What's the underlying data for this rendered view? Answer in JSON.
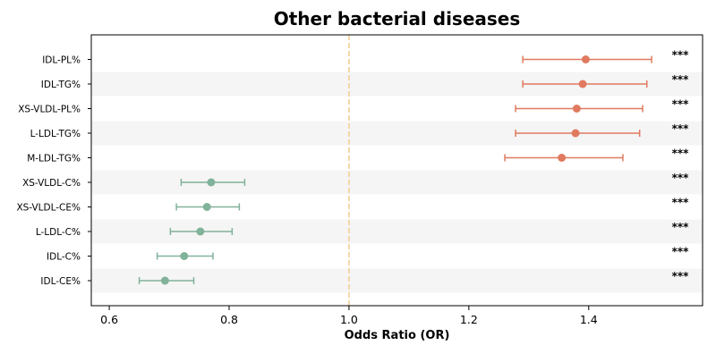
{
  "chart_data": {
    "type": "forest",
    "title": "Other bacterial diseases",
    "xlabel": "Odds Ratio (OR)",
    "ylabel": "",
    "xlim": [
      0.57,
      1.59
    ],
    "xticks": [
      0.6,
      0.8,
      1.0,
      1.2,
      1.4
    ],
    "xtick_labels": [
      "0.6",
      "0.8",
      "1.0",
      "1.2",
      "1.4"
    ],
    "reference_line": 1.0,
    "significance_marker": "***",
    "colors": {
      "positive": "#e07a5f",
      "negative": "#81b29a",
      "reference_line": "#f2cc8f",
      "row_stripe": "#f5f5f5"
    },
    "rows": [
      {
        "label": "IDL-PL%",
        "or": 1.395,
        "lower": 1.29,
        "upper": 1.505,
        "sig": "***"
      },
      {
        "label": "IDL-TG%",
        "or": 1.39,
        "lower": 1.29,
        "upper": 1.497,
        "sig": "***"
      },
      {
        "label": "XS-VLDL-PL%",
        "or": 1.38,
        "lower": 1.278,
        "upper": 1.49,
        "sig": "***"
      },
      {
        "label": "L-LDL-TG%",
        "or": 1.378,
        "lower": 1.278,
        "upper": 1.485,
        "sig": "***"
      },
      {
        "label": "M-LDL-TG%",
        "or": 1.355,
        "lower": 1.26,
        "upper": 1.457,
        "sig": "***"
      },
      {
        "label": "XS-VLDL-C%",
        "or": 0.77,
        "lower": 0.72,
        "upper": 0.826,
        "sig": "***"
      },
      {
        "label": "XS-VLDL-CE%",
        "or": 0.763,
        "lower": 0.712,
        "upper": 0.817,
        "sig": "***"
      },
      {
        "label": "L-LDL-C%",
        "or": 0.752,
        "lower": 0.702,
        "upper": 0.805,
        "sig": "***"
      },
      {
        "label": "IDL-C%",
        "or": 0.725,
        "lower": 0.68,
        "upper": 0.773,
        "sig": "***"
      },
      {
        "label": "IDL-CE%",
        "or": 0.693,
        "lower": 0.65,
        "upper": 0.741,
        "sig": "***"
      }
    ]
  }
}
